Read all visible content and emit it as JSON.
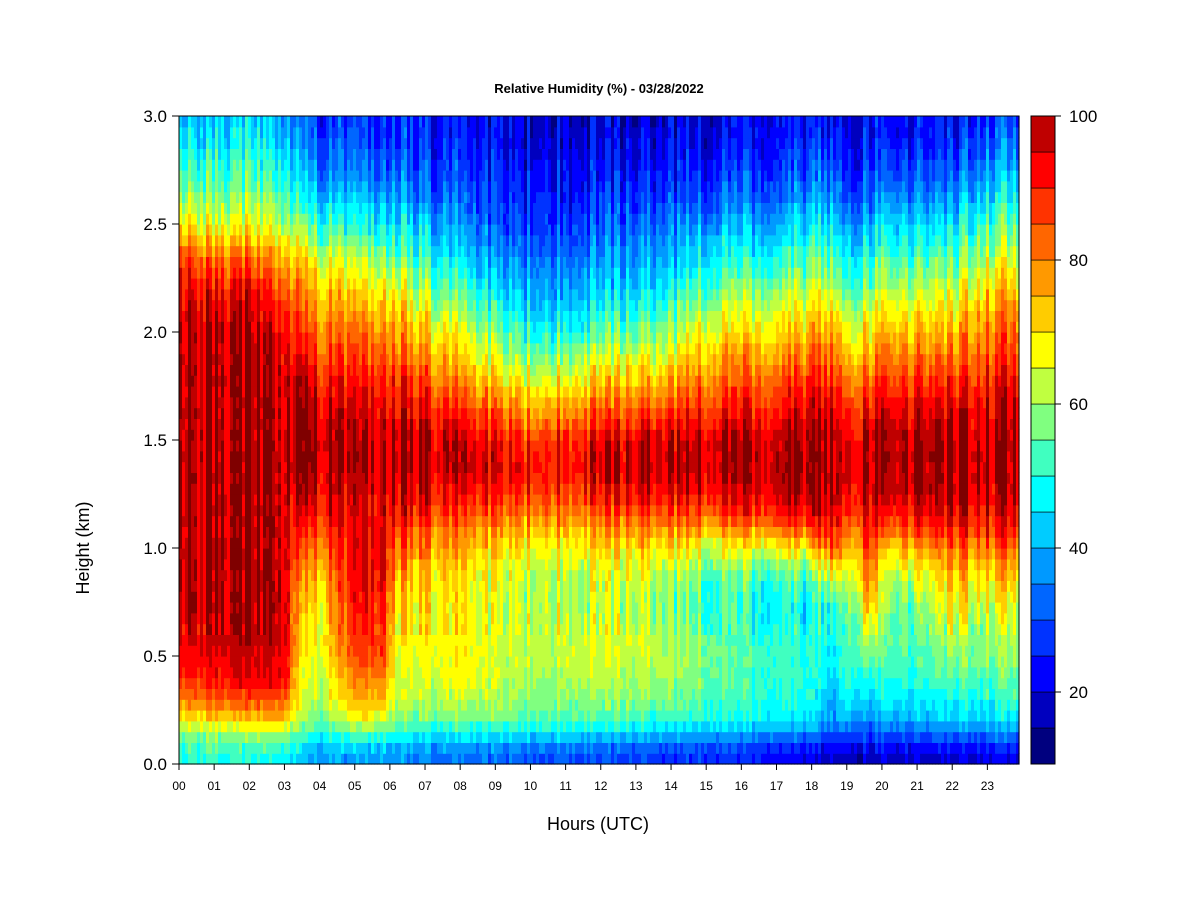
{
  "chart_data": {
    "type": "heatmap",
    "title": "Relative Humidity (%) - 03/28/2022",
    "xlabel": "Hours (UTC)",
    "ylabel": "Height (km)",
    "x_ticks": [
      "00",
      "01",
      "02",
      "03",
      "04",
      "05",
      "06",
      "07",
      "08",
      "09",
      "10",
      "11",
      "12",
      "13",
      "14",
      "15",
      "16",
      "17",
      "18",
      "19",
      "20",
      "21",
      "22",
      "23"
    ],
    "y_ticks": [
      "0.0",
      "0.5",
      "1.0",
      "1.5",
      "2.0",
      "2.5",
      "3.0"
    ],
    "xlim": [
      0,
      23.9
    ],
    "ylim": [
      0,
      3.0
    ],
    "colorbar": {
      "range": [
        10,
        100
      ],
      "step": 5,
      "tick_values": [
        20,
        40,
        60,
        80,
        100
      ],
      "tick_labels": [
        "20",
        "40",
        "60",
        "80",
        "100"
      ],
      "colors": [
        "#00007F",
        "#0000BF",
        "#0000FF",
        "#0033FF",
        "#0066FF",
        "#0099FF",
        "#00CCFF",
        "#00FFFF",
        "#40FFC0",
        "#80FF80",
        "#C0FF40",
        "#FFFF00",
        "#FFCC00",
        "#FF9900",
        "#FF6600",
        "#FF3300",
        "#FF0000",
        "#BF0000",
        "#7F0000"
      ]
    },
    "profile_heights_km": [
      0.0,
      0.05,
      0.1,
      0.15,
      0.2,
      0.3,
      0.4,
      0.5,
      0.6,
      0.7,
      0.8,
      0.9,
      1.0,
      1.1,
      1.2,
      1.3,
      1.4,
      1.5,
      1.6,
      1.7,
      1.8,
      1.9,
      2.0,
      2.1,
      2.2,
      2.3,
      2.4,
      2.5,
      2.6,
      2.7,
      2.8,
      2.9,
      3.0
    ],
    "profile_times_utc": [
      0,
      1,
      2,
      3,
      3.5,
      4,
      5,
      5.8,
      6.2,
      7,
      8,
      9,
      10,
      11,
      12,
      13,
      14,
      15,
      16,
      17,
      18,
      18.6,
      19,
      19.7,
      20,
      21,
      22,
      23,
      23.9
    ],
    "rh_profiles_percent": [
      [
        50,
        52,
        54,
        58,
        68,
        80,
        88,
        92,
        95,
        98,
        99,
        99,
        99,
        99,
        99,
        99,
        99,
        99,
        99,
        99,
        99,
        99,
        98,
        96,
        94,
        92,
        82,
        70,
        62,
        56,
        50,
        46,
        42
      ],
      [
        50,
        52,
        55,
        60,
        70,
        84,
        92,
        95,
        98,
        99,
        99,
        99,
        99,
        99,
        99,
        99,
        99,
        99,
        99,
        99,
        99,
        99,
        99,
        97,
        93,
        86,
        76,
        66,
        60,
        54,
        50,
        46,
        42
      ],
      [
        48,
        50,
        54,
        60,
        72,
        86,
        94,
        97,
        99,
        99,
        99,
        99,
        99,
        99,
        99,
        99,
        99,
        99,
        99,
        99,
        99,
        99,
        98,
        96,
        92,
        86,
        76,
        66,
        60,
        54,
        50,
        46,
        42
      ],
      [
        48,
        50,
        55,
        62,
        74,
        86,
        94,
        96,
        99,
        99,
        99,
        99,
        99,
        99,
        99,
        99,
        99,
        99,
        99,
        99,
        99,
        97,
        95,
        92,
        86,
        80,
        72,
        64,
        58,
        52,
        48,
        44,
        40
      ],
      [
        40,
        42,
        46,
        52,
        58,
        62,
        64,
        66,
        66,
        68,
        70,
        74,
        80,
        86,
        92,
        96,
        99,
        99,
        98,
        96,
        94,
        88,
        84,
        80,
        76,
        70,
        62,
        54,
        46,
        40,
        36,
        32,
        30
      ],
      [
        38,
        40,
        44,
        50,
        56,
        62,
        64,
        66,
        68,
        70,
        72,
        78,
        82,
        88,
        94,
        97,
        99,
        99,
        97,
        94,
        90,
        86,
        82,
        78,
        74,
        68,
        60,
        52,
        44,
        38,
        34,
        30,
        28
      ],
      [
        38,
        40,
        46,
        56,
        66,
        74,
        80,
        86,
        88,
        90,
        92,
        94,
        94,
        94,
        96,
        98,
        99,
        99,
        97,
        94,
        90,
        86,
        82,
        76,
        72,
        66,
        58,
        50,
        44,
        38,
        34,
        30,
        28
      ],
      [
        38,
        40,
        46,
        56,
        66,
        74,
        82,
        88,
        90,
        92,
        94,
        96,
        96,
        96,
        97,
        98,
        99,
        99,
        97,
        94,
        90,
        86,
        82,
        76,
        70,
        64,
        56,
        48,
        42,
        36,
        32,
        28,
        26
      ],
      [
        36,
        38,
        42,
        50,
        58,
        62,
        64,
        66,
        68,
        70,
        72,
        76,
        82,
        88,
        94,
        97,
        99,
        99,
        96,
        92,
        88,
        82,
        78,
        72,
        66,
        60,
        52,
        46,
        40,
        34,
        30,
        28,
        26
      ],
      [
        34,
        36,
        40,
        48,
        56,
        62,
        64,
        66,
        68,
        70,
        72,
        74,
        80,
        86,
        92,
        96,
        98,
        98,
        94,
        90,
        84,
        78,
        72,
        66,
        60,
        54,
        48,
        42,
        36,
        32,
        28,
        26,
        24
      ],
      [
        32,
        34,
        40,
        48,
        56,
        62,
        66,
        68,
        68,
        68,
        68,
        70,
        74,
        80,
        88,
        94,
        97,
        96,
        90,
        84,
        76,
        70,
        64,
        58,
        52,
        46,
        40,
        36,
        32,
        28,
        26,
        24,
        22
      ],
      [
        32,
        34,
        40,
        48,
        56,
        60,
        64,
        64,
        64,
        64,
        64,
        66,
        70,
        78,
        86,
        92,
        94,
        92,
        86,
        78,
        70,
        62,
        56,
        50,
        44,
        38,
        34,
        30,
        28,
        26,
        24,
        22,
        20
      ],
      [
        30,
        32,
        38,
        46,
        54,
        58,
        60,
        62,
        62,
        62,
        62,
        64,
        68,
        76,
        84,
        90,
        92,
        88,
        80,
        72,
        64,
        56,
        50,
        44,
        40,
        36,
        32,
        28,
        26,
        24,
        22,
        20,
        18
      ],
      [
        30,
        32,
        38,
        46,
        54,
        58,
        62,
        64,
        64,
        62,
        62,
        64,
        68,
        76,
        84,
        90,
        92,
        90,
        82,
        74,
        66,
        58,
        50,
        44,
        40,
        36,
        32,
        28,
        26,
        24,
        22,
        20,
        18
      ],
      [
        28,
        30,
        36,
        44,
        52,
        58,
        62,
        64,
        64,
        62,
        62,
        64,
        70,
        78,
        88,
        94,
        96,
        94,
        86,
        78,
        70,
        62,
        54,
        48,
        42,
        38,
        34,
        30,
        28,
        24,
        22,
        20,
        18
      ],
      [
        28,
        30,
        36,
        44,
        52,
        58,
        62,
        64,
        64,
        62,
        62,
        66,
        72,
        80,
        90,
        96,
        98,
        96,
        88,
        80,
        72,
        64,
        56,
        50,
        44,
        40,
        36,
        32,
        28,
        26,
        22,
        20,
        18
      ],
      [
        26,
        28,
        34,
        42,
        50,
        56,
        60,
        62,
        60,
        58,
        58,
        62,
        70,
        80,
        90,
        96,
        98,
        96,
        90,
        82,
        74,
        66,
        60,
        54,
        48,
        42,
        38,
        34,
        30,
        26,
        24,
        22,
        20
      ],
      [
        26,
        28,
        34,
        42,
        50,
        54,
        56,
        58,
        56,
        54,
        54,
        58,
        66,
        78,
        90,
        96,
        98,
        97,
        92,
        86,
        80,
        74,
        68,
        62,
        56,
        50,
        44,
        38,
        32,
        28,
        24,
        22,
        20
      ],
      [
        24,
        26,
        32,
        40,
        48,
        52,
        54,
        54,
        52,
        50,
        52,
        56,
        66,
        80,
        92,
        97,
        99,
        98,
        94,
        88,
        82,
        76,
        70,
        64,
        58,
        52,
        46,
        40,
        34,
        30,
        26,
        24,
        22
      ],
      [
        22,
        24,
        30,
        38,
        46,
        50,
        52,
        52,
        50,
        48,
        50,
        56,
        68,
        84,
        94,
        98,
        99,
        98,
        94,
        88,
        82,
        76,
        70,
        64,
        58,
        52,
        46,
        40,
        34,
        30,
        26,
        24,
        22
      ],
      [
        20,
        22,
        28,
        36,
        44,
        48,
        50,
        50,
        48,
        46,
        48,
        54,
        68,
        86,
        96,
        99,
        99,
        99,
        96,
        92,
        86,
        80,
        74,
        68,
        62,
        56,
        50,
        44,
        38,
        32,
        28,
        24,
        22
      ],
      [
        16,
        18,
        24,
        30,
        36,
        40,
        44,
        46,
        48,
        50,
        58,
        72,
        86,
        94,
        98,
        99,
        99,
        99,
        98,
        94,
        88,
        82,
        76,
        70,
        64,
        58,
        52,
        46,
        40,
        34,
        30,
        26,
        24
      ],
      [
        18,
        20,
        26,
        34,
        42,
        48,
        52,
        54,
        56,
        58,
        62,
        68,
        76,
        86,
        94,
        98,
        99,
        98,
        94,
        88,
        82,
        76,
        70,
        64,
        58,
        52,
        46,
        40,
        34,
        30,
        26,
        24,
        22
      ],
      [
        16,
        18,
        24,
        30,
        36,
        42,
        48,
        56,
        64,
        72,
        78,
        84,
        88,
        92,
        96,
        98,
        99,
        98,
        94,
        88,
        82,
        76,
        70,
        64,
        58,
        52,
        46,
        40,
        34,
        30,
        26,
        24,
        22
      ],
      [
        18,
        20,
        26,
        32,
        40,
        46,
        50,
        54,
        56,
        58,
        60,
        64,
        72,
        84,
        94,
        98,
        99,
        99,
        96,
        92,
        86,
        80,
        74,
        68,
        62,
        56,
        50,
        44,
        38,
        32,
        28,
        24,
        22
      ],
      [
        18,
        20,
        26,
        32,
        40,
        46,
        50,
        52,
        54,
        56,
        60,
        66,
        76,
        88,
        96,
        99,
        99,
        99,
        96,
        92,
        86,
        80,
        74,
        68,
        62,
        56,
        50,
        44,
        38,
        32,
        28,
        24,
        22
      ],
      [
        18,
        20,
        26,
        34,
        42,
        48,
        54,
        58,
        62,
        66,
        70,
        74,
        82,
        90,
        96,
        99,
        99,
        99,
        96,
        92,
        86,
        80,
        74,
        68,
        62,
        56,
        50,
        44,
        38,
        32,
        28,
        24,
        22
      ],
      [
        20,
        22,
        28,
        36,
        44,
        50,
        54,
        58,
        60,
        64,
        68,
        74,
        82,
        90,
        96,
        99,
        99,
        99,
        97,
        94,
        90,
        86,
        82,
        78,
        72,
        66,
        60,
        54,
        48,
        42,
        36,
        32,
        28
      ],
      [
        22,
        24,
        30,
        38,
        46,
        52,
        56,
        60,
        62,
        66,
        70,
        76,
        84,
        92,
        97,
        99,
        99,
        99,
        98,
        96,
        92,
        88,
        84,
        80,
        74,
        68,
        62,
        56,
        50,
        44,
        38,
        34,
        30
      ]
    ]
  }
}
